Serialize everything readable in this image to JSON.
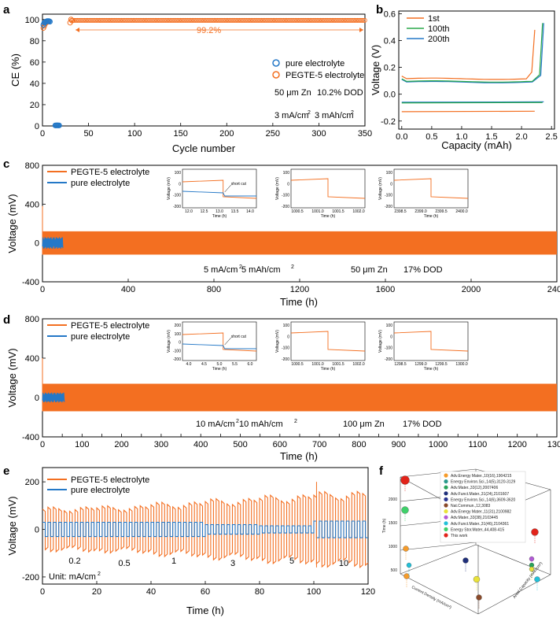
{
  "colors": {
    "orange": "#f36f21",
    "blue": "#2478c7",
    "axis": "#000000"
  },
  "panel_a": {
    "letter": "a",
    "title_annotation": "99.2%",
    "legend": [
      "pure electrolyte",
      "PEGTE-5  electrolyte"
    ],
    "notes": {
      "zn": "50 μm Zn",
      "dod": "10.2% DOD",
      "current": "3 mA/cm",
      "capacity": "3 mAh/cm",
      "sup": "2"
    },
    "chart_data": {
      "type": "scatter",
      "xlabel": "Cycle number",
      "ylabel": "CE (%)",
      "xlim": [
        0,
        350
      ],
      "ylim": [
        0,
        100
      ],
      "xticks": [
        0,
        50,
        100,
        150,
        200,
        250,
        300,
        350
      ],
      "yticks": [
        0,
        20,
        40,
        60,
        80,
        100
      ],
      "series": [
        {
          "name": "pure electrolyte",
          "points": [
            [
              1,
              95
            ],
            [
              2,
              97
            ],
            [
              3,
              97.5
            ],
            [
              4,
              98
            ],
            [
              5,
              98.5
            ],
            [
              6,
              98.5
            ],
            [
              7,
              98.5
            ],
            [
              8,
              98
            ],
            [
              14,
              0.5
            ],
            [
              15,
              0.5
            ],
            [
              16,
              0.6
            ],
            [
              17,
              0.5
            ],
            [
              18,
              0.5
            ]
          ]
        },
        {
          "name": "PEGTE-5  electrolyte",
          "points_note": "values ~99.2% from cycle 1 to 350",
          "first_cycles": [
            [
              1,
              92
            ],
            [
              2,
              94
            ],
            [
              3,
              96
            ],
            [
              4,
              97
            ],
            [
              5,
              97.5
            ],
            [
              30,
              97
            ],
            [
              31,
              100
            ],
            [
              32,
              99
            ]
          ],
          "steady_value": 99.2
        }
      ],
      "annotation": "99.2%",
      "arrow_range": [
        35,
        350
      ]
    }
  },
  "panel_b": {
    "letter": "b",
    "chart_data": {
      "type": "line",
      "xlabel": "Capacity (mAh)",
      "ylabel": "Voltage (V)",
      "xlim": [
        0,
        2.5
      ],
      "ylim": [
        -0.25,
        0.6
      ],
      "xticks": [
        0.0,
        0.5,
        1.0,
        1.5,
        2.0,
        2.5
      ],
      "yticks": [
        -0.2,
        0.0,
        0.2,
        0.4,
        0.6
      ],
      "series": [
        {
          "name": "1st",
          "color": "#f36f21",
          "charge_end": 2.22,
          "charge_level": 0.115,
          "discharge_level": -0.13
        },
        {
          "name": "100th",
          "color": "#2aa84a",
          "charge_end": 2.35,
          "charge_level": 0.095,
          "discharge_level": -0.065
        },
        {
          "name": "200th",
          "color": "#2478c7",
          "charge_end": 2.37,
          "charge_level": 0.09,
          "discharge_level": -0.06
        }
      ]
    }
  },
  "panel_c": {
    "letter": "c",
    "legend": [
      "PEGTE-5 electrolyte",
      "pure electrolyte"
    ],
    "notes": {
      "cond": "5 mA/cm",
      "cap": "  5 mAh/cm",
      "zn": "50 μm Zn",
      "dod": "17% DOD",
      "sup": "2"
    },
    "chart_data": {
      "type": "line",
      "xlabel": "Time (h)",
      "ylabel": "Voltage (mV)",
      "xlim": [
        0,
        2400
      ],
      "ylim": [
        -400,
        800
      ],
      "xticks": [
        0,
        400,
        800,
        1200,
        1600,
        2000,
        2400
      ],
      "yticks": [
        -400,
        0,
        400,
        800
      ],
      "series": [
        {
          "name": "PEGTE-5 electrolyte",
          "band": [
            -120,
            120
          ],
          "range": [
            0,
            2400
          ]
        },
        {
          "name": "pure electrolyte",
          "band": [
            -60,
            60
          ],
          "range": [
            0,
            95
          ]
        }
      ],
      "insets": [
        {
          "xticks": [
            "12.0",
            "12.5",
            "13.0",
            "13.5",
            "14.0"
          ],
          "yticks": [
            "100",
            "0",
            "-100",
            "-200"
          ],
          "xlabel": "Time (h)",
          "ylabel": "Voltage (mV)",
          "annotation": "short cut"
        },
        {
          "xticks": [
            "1000.5",
            "1001.0",
            "1001.5",
            "1002.0"
          ],
          "yticks": [
            "100",
            "0",
            "-100",
            "-200"
          ],
          "xlabel": "Time (h)",
          "ylabel": "Voltage (mV)"
        },
        {
          "xticks": [
            "2398.5",
            "2399.0",
            "2399.5",
            "2400.0"
          ],
          "yticks": [
            "100",
            "0",
            "-100",
            "-200"
          ],
          "xlabel": "Time (h)",
          "ylabel": "Voltage (mV)"
        }
      ]
    }
  },
  "panel_d": {
    "letter": "d",
    "legend": [
      "PEGTE-5 electrolyte",
      "pure electrolyte"
    ],
    "notes": {
      "cond": "10 mA/cm",
      "cap": "  10 mAh/cm",
      "zn": "100 μm Zn",
      "dod": "17% DOD",
      "sup": "2"
    },
    "chart_data": {
      "type": "line",
      "xlabel": "Time (h)",
      "ylabel": "Voltage (mV)",
      "xlim": [
        0,
        1300
      ],
      "ylim": [
        -400,
        800
      ],
      "xticks": [
        0,
        50,
        100,
        150,
        200,
        250,
        300,
        350,
        400,
        450,
        500,
        550,
        600,
        650,
        700,
        750,
        800,
        850,
        900,
        950,
        1000,
        1050,
        1100,
        1150,
        1200,
        1250,
        1300
      ],
      "xtick_labels": [
        0,
        100,
        200,
        300,
        400,
        500,
        600,
        700,
        800,
        900,
        1000,
        1100,
        1200,
        1300
      ],
      "yticks": [
        -400,
        0,
        400,
        800
      ],
      "series": [
        {
          "name": "PEGTE-5 electrolyte",
          "band": [
            -140,
            140
          ],
          "range": [
            0,
            1300
          ]
        },
        {
          "name": "pure electrolyte",
          "band": [
            -50,
            50
          ],
          "range": [
            0,
            55
          ]
        }
      ],
      "insets": [
        {
          "xticks": [
            "4.0",
            "4.5",
            "5.0",
            "5.5",
            "6.0"
          ],
          "yticks": [
            "200",
            "100",
            "0",
            "-100",
            "-200"
          ],
          "xlabel": "Time (h)",
          "ylabel": "Voltage (mV)",
          "annotation": "short cut"
        },
        {
          "xticks": [
            "1000.5",
            "1001.0",
            "1001.5",
            "1002.0"
          ],
          "yticks": [
            "100",
            "0",
            "-100",
            "-200"
          ],
          "xlabel": "Time (h)",
          "ylabel": "Voltage (mV)"
        },
        {
          "xticks": [
            "1298.5",
            "1299.0",
            "1299.5",
            "1300.0"
          ],
          "yticks": [
            "100",
            "0",
            "-100",
            "-200"
          ],
          "xlabel": "Time (h)",
          "ylabel": "Voltage (mV)"
        }
      ]
    }
  },
  "panel_e": {
    "letter": "e",
    "legend": [
      "PEGTE-5  electrolyte",
      "pure  electrolyte"
    ],
    "unit": "Unit: mA/cm",
    "rate_labels": [
      "0.2",
      "0.5",
      "1",
      "3",
      "5",
      "10"
    ],
    "chart_data": {
      "type": "line",
      "xlabel": "Time (h)",
      "ylabel": "Voltage (mV)",
      "xlim": [
        0,
        120
      ],
      "ylim": [
        -200,
        250
      ],
      "xticks": [
        0,
        20,
        40,
        60,
        80,
        100,
        120
      ],
      "yticks": [
        -200,
        0,
        200
      ],
      "rate_steps": [
        {
          "rate": "0.2",
          "start": 0,
          "end": 20,
          "orange": 95,
          "blue": 30
        },
        {
          "rate": "0.5",
          "start": 20,
          "end": 40,
          "orange": 100,
          "blue": 30
        },
        {
          "rate": "1",
          "start": 40,
          "end": 60,
          "orange": 115,
          "blue": 30
        },
        {
          "rate": "3",
          "start": 60,
          "end": 80,
          "orange": 130,
          "blue": 20
        },
        {
          "rate": "5",
          "start": 80,
          "end": 100,
          "orange": 145,
          "blue": 15
        },
        {
          "rate": "10",
          "start": 100,
          "end": 120,
          "orange": 160,
          "blue": 35
        }
      ]
    }
  },
  "panel_f": {
    "letter": "f",
    "zlabel": "Time (h)",
    "xlabel": "Current Density (mA/cm²)",
    "ylabel": "Areal Capacity (mAh/cm²)",
    "zticks": [
      "2000",
      "1500",
      "1000",
      "500"
    ],
    "legend": [
      {
        "label": "Adv.Energy Mater.,10(16),1904215",
        "color": "#f59b2a"
      },
      {
        "label": "Energy Environ.Sci.,14(5),3120-3129",
        "color": "#2b9a8c"
      },
      {
        "label": "Adv.Mater.,33(12),2007406",
        "color": "#28a35a"
      },
      {
        "label": "Adv.Funct.Mater.,31(24),2101607",
        "color": "#1f2f7a"
      },
      {
        "label": "Energy Environ.Sci.,14(6),3609-3620",
        "color": "#2a3590"
      },
      {
        "label": "Nat.Commun.,12,3083",
        "color": "#8a4a2a"
      },
      {
        "label": "Adv.Energy Mater.,11(31),2100982",
        "color": "#e9e23a"
      },
      {
        "label": "Adv.Mater.,33(38),2103445",
        "color": "#b25ad6"
      },
      {
        "label": "Adv.Funct.Mater.,31(46),2104361",
        "color": "#22c0d8"
      },
      {
        "label": "Energy Stor.Mater.,44,408-415",
        "color": "#3fd06a"
      },
      {
        "label": "This work",
        "color": "#e2231a"
      }
    ]
  }
}
